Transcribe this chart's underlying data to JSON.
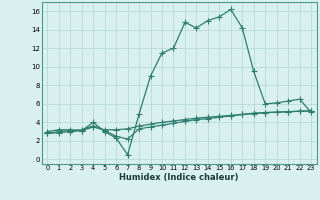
{
  "xlabel": "Humidex (Indice chaleur)",
  "line1_x": [
    0,
    1,
    2,
    3,
    4,
    5,
    6,
    7,
    8,
    9,
    10,
    11,
    12,
    13,
    14,
    15,
    16,
    17,
    18,
    19,
    20,
    21,
    22,
    23
  ],
  "line1_y": [
    3.0,
    3.2,
    3.2,
    3.1,
    4.0,
    3.0,
    2.3,
    0.5,
    4.9,
    9.0,
    11.5,
    12.0,
    14.8,
    14.2,
    15.0,
    15.4,
    16.2,
    14.2,
    9.5,
    6.0,
    6.1,
    6.3,
    6.5,
    5.1
  ],
  "line2_x": [
    0,
    1,
    2,
    3,
    4,
    5,
    6,
    7,
    8,
    9,
    10,
    11,
    12,
    13,
    14,
    15,
    16,
    17,
    18,
    19,
    20,
    21,
    22,
    23
  ],
  "line2_y": [
    2.8,
    2.9,
    3.0,
    3.1,
    3.5,
    3.2,
    3.2,
    3.3,
    3.6,
    3.8,
    4.0,
    4.15,
    4.3,
    4.45,
    4.55,
    4.65,
    4.75,
    4.85,
    4.95,
    5.05,
    5.1,
    5.15,
    5.2,
    5.25
  ],
  "line3_x": [
    0,
    1,
    2,
    3,
    4,
    5,
    6,
    7,
    8,
    9,
    10,
    11,
    12,
    13,
    14,
    15,
    16,
    17,
    18,
    19,
    20,
    21,
    22,
    23
  ],
  "line3_y": [
    2.8,
    3.0,
    3.1,
    3.2,
    3.6,
    3.1,
    2.5,
    2.2,
    3.3,
    3.5,
    3.7,
    3.9,
    4.1,
    4.3,
    4.4,
    4.55,
    4.7,
    4.85,
    5.0,
    5.05,
    5.1,
    5.15,
    5.2,
    5.25
  ],
  "line_color": "#2e7d6e",
  "bg_color": "#d9f0f0",
  "grid_color": "#b8dada",
  "ylim": [
    -0.5,
    17
  ],
  "xlim": [
    -0.5,
    23.5
  ],
  "yticks": [
    0,
    2,
    4,
    6,
    8,
    10,
    12,
    14,
    16
  ],
  "xticks": [
    0,
    1,
    2,
    3,
    4,
    5,
    6,
    7,
    8,
    9,
    10,
    11,
    12,
    13,
    14,
    15,
    16,
    17,
    18,
    19,
    20,
    21,
    22,
    23
  ],
  "marker": "+",
  "marker_size": 4,
  "linewidth": 0.9
}
